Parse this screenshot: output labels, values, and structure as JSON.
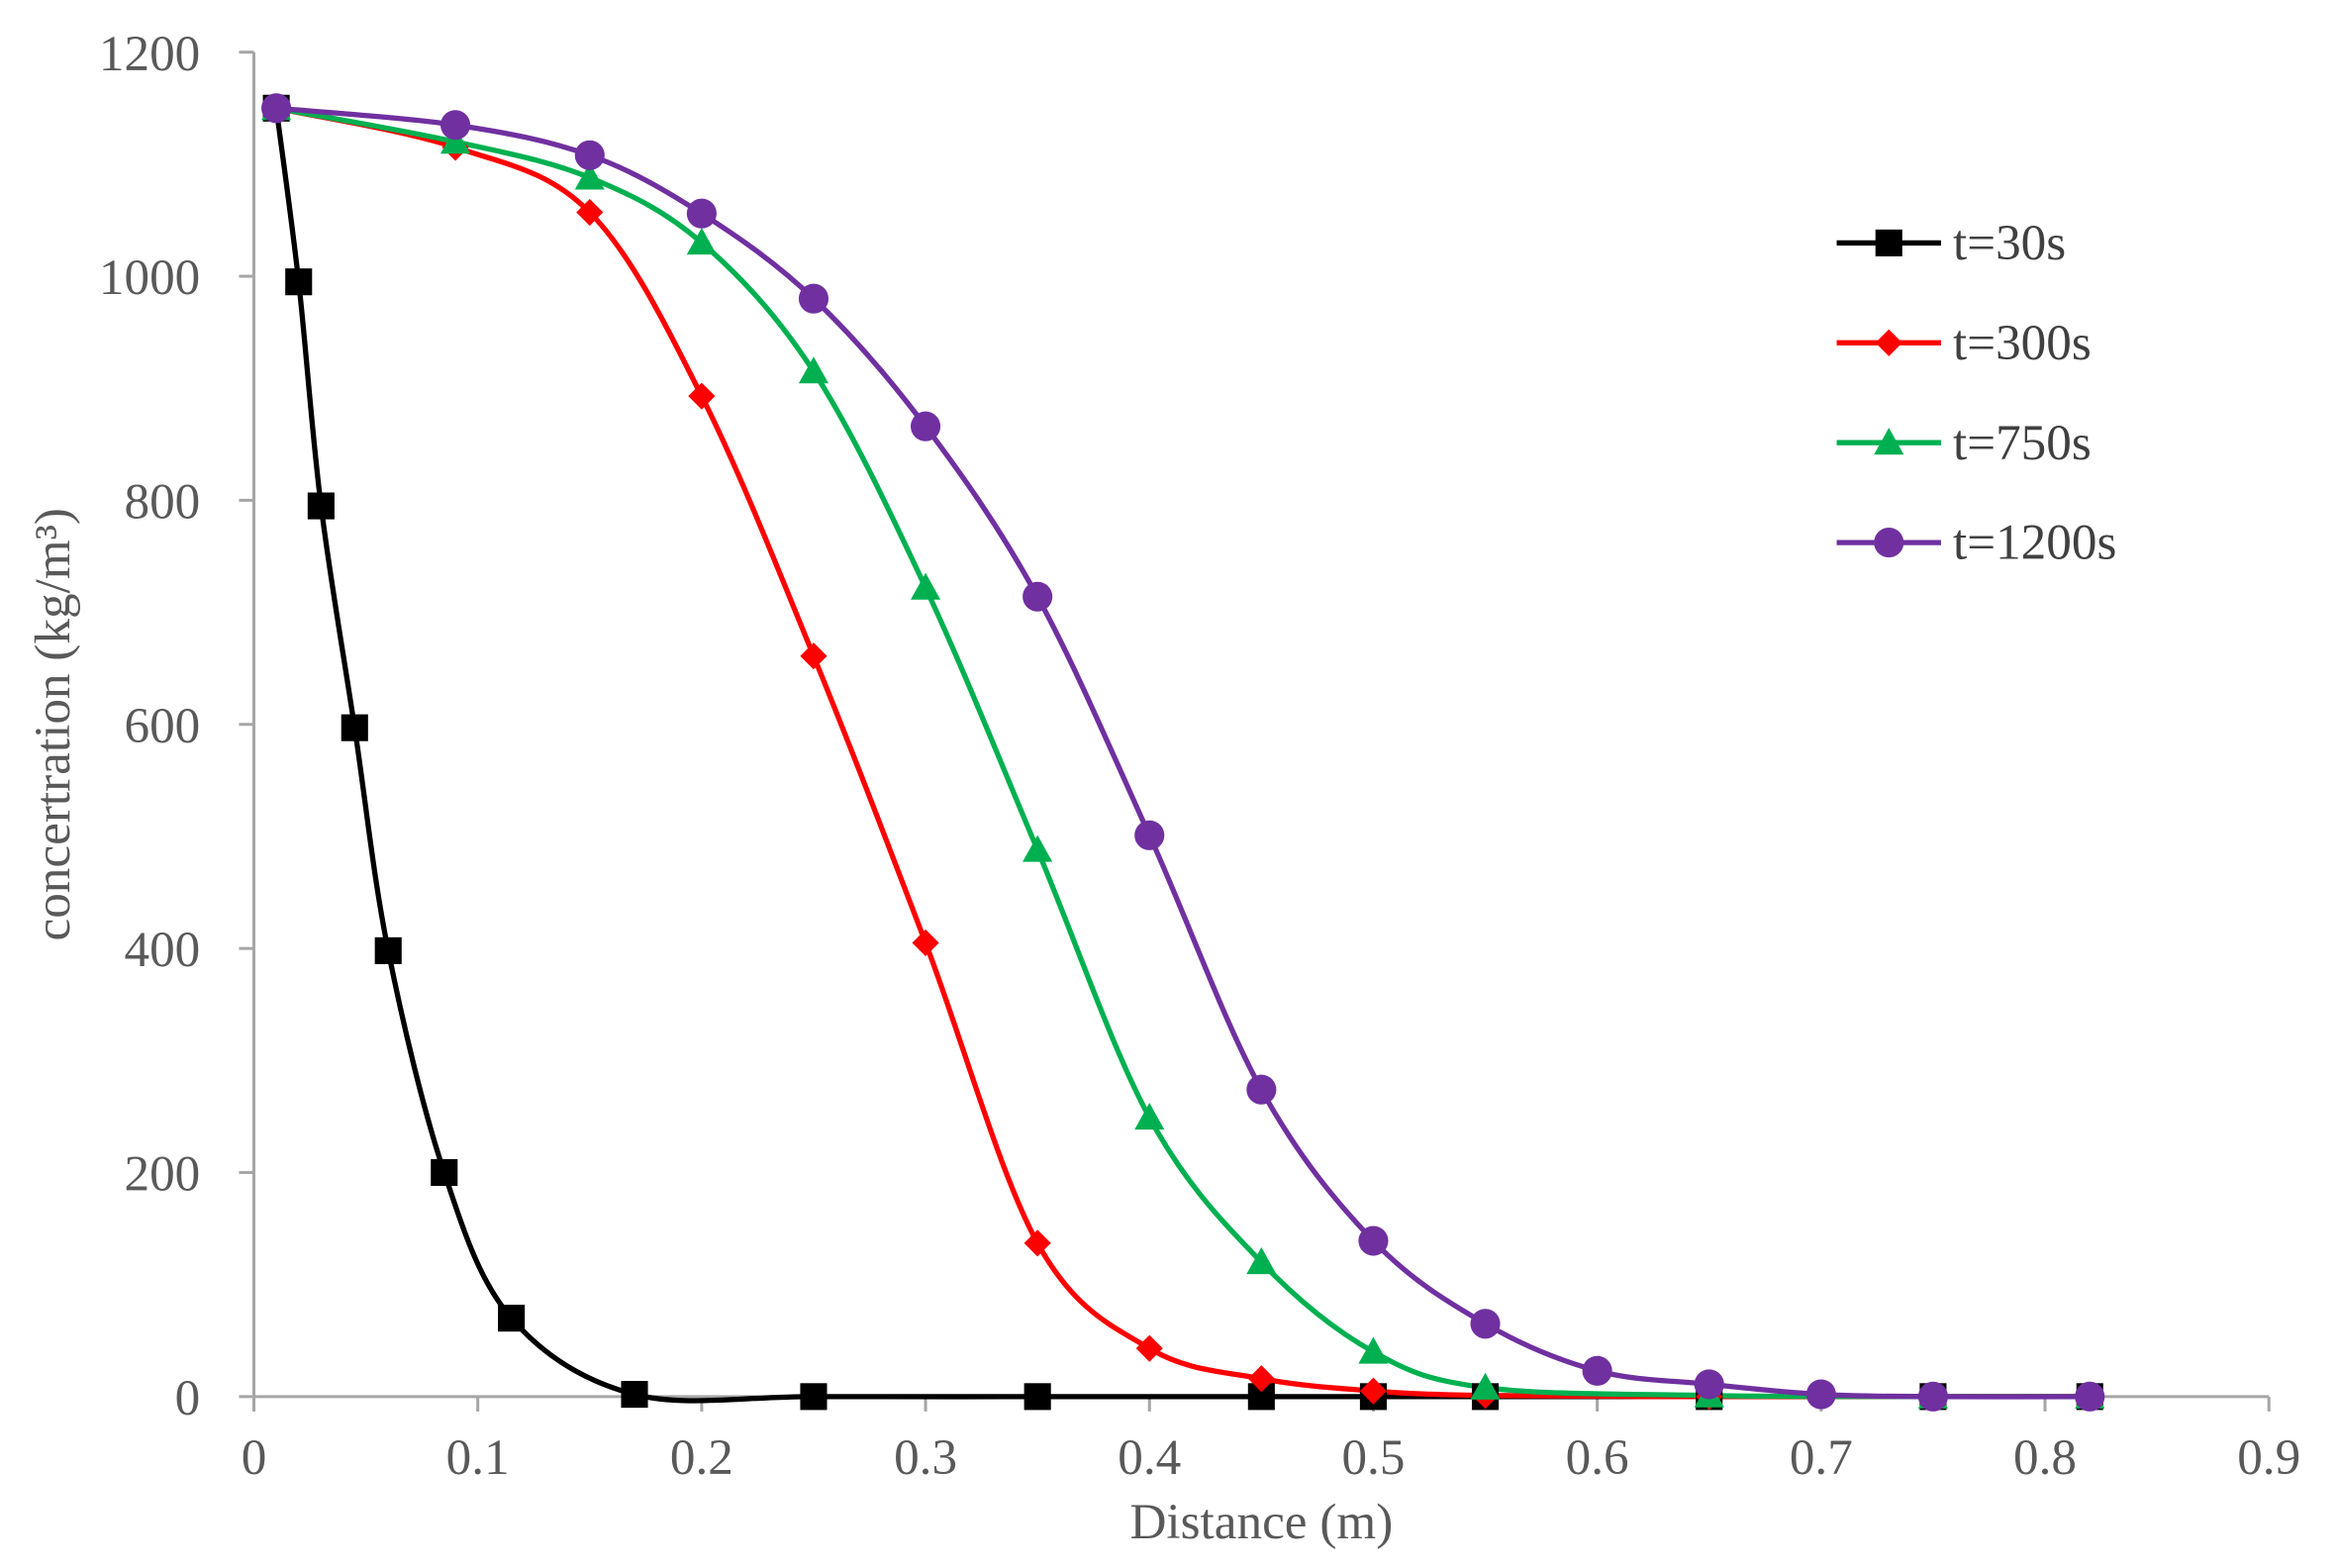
{
  "chart_data": {
    "type": "line",
    "x_label": "Distance (m)",
    "y_label": "concertration (kg/m³)",
    "xlim": [
      0,
      0.9
    ],
    "xticks": [
      0,
      0.1,
      0.2,
      0.3,
      0.4,
      0.5,
      0.6,
      0.7,
      0.8,
      0.9
    ],
    "ylim": [
      0,
      1200
    ],
    "yticks": [
      0,
      200,
      400,
      600,
      800,
      1000,
      1200
    ],
    "legend": "right",
    "series": [
      {
        "name": "t=30s",
        "color": "#000000",
        "marker": "square",
        "x": [
          0.01,
          0.02,
          0.03,
          0.045,
          0.06,
          0.085,
          0.115,
          0.17,
          0.25,
          0.35,
          0.45,
          0.5,
          0.55,
          0.65,
          0.75,
          0.82
        ],
        "values": [
          1150,
          995,
          795,
          597,
          398,
          200,
          70,
          2,
          0,
          0,
          0,
          0,
          0,
          0,
          0,
          0
        ]
      },
      {
        "name": "t=300s",
        "color": "#ff0000",
        "marker": "diamond",
        "x": [
          0.01,
          0.09,
          0.15,
          0.2,
          0.25,
          0.3,
          0.35,
          0.4,
          0.45,
          0.5,
          0.55,
          0.65,
          0.75,
          0.82
        ],
        "values": [
          1150,
          1115,
          1057,
          893,
          661,
          405,
          137,
          43,
          16,
          5,
          1,
          0,
          0,
          0
        ]
      },
      {
        "name": "t=750s",
        "color": "#00b050",
        "marker": "triangle",
        "x": [
          0.01,
          0.09,
          0.15,
          0.2,
          0.25,
          0.3,
          0.35,
          0.4,
          0.45,
          0.5,
          0.55,
          0.65,
          0.75,
          0.82
        ],
        "values": [
          1150,
          1120,
          1088,
          1030,
          915,
          722,
          488,
          249,
          120,
          40,
          8,
          1,
          0,
          0
        ]
      },
      {
        "name": "t=1200s",
        "color": "#7030a0",
        "marker": "circle",
        "x": [
          0.01,
          0.09,
          0.15,
          0.2,
          0.25,
          0.3,
          0.35,
          0.4,
          0.45,
          0.5,
          0.55,
          0.6,
          0.65,
          0.7,
          0.75,
          0.82
        ],
        "values": [
          1150,
          1135,
          1108,
          1056,
          980,
          866,
          714,
          501,
          274,
          139,
          65,
          23,
          11,
          2,
          0,
          0
        ]
      }
    ]
  }
}
